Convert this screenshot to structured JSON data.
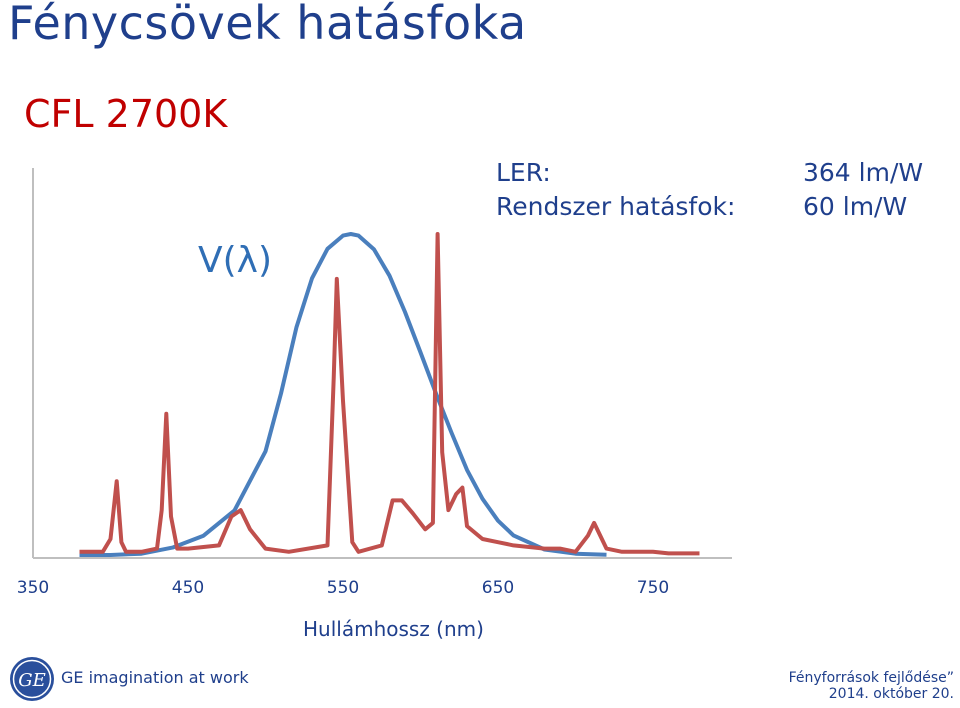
{
  "slide": {
    "title": "Fénycsövek hatásfoka",
    "subtitle": "CFL 2700K"
  },
  "info": {
    "ler_label": "LER:",
    "ler_value": "364 lm/W",
    "system_label": "Rendszer hatásfok:",
    "system_value": "60 lm/W"
  },
  "footer": {
    "brand_tagline": "GE imagination at work",
    "logo_text": "GE",
    "event": "Fényforrások fejlődése”",
    "date": "2014. október 20."
  },
  "colors": {
    "title": "#1f3f8c",
    "subtitle": "#c00000",
    "v_lambda": "#4a7fbd",
    "spectrum": "#c0504d",
    "axis": "#bfbfbf"
  },
  "chart_data": {
    "type": "line",
    "xlabel": "Hullámhossz (nm)",
    "ylabel": "",
    "xlim": [
      350,
      800
    ],
    "ylim": [
      0,
      1
    ],
    "xticks": [
      350,
      450,
      550,
      650,
      750
    ],
    "grid": false,
    "annotations": [
      {
        "text": "V(λ)"
      }
    ],
    "series": [
      {
        "label": "V(λ)",
        "color": "#4a7fbd",
        "x": [
          380,
          400,
          420,
          440,
          460,
          480,
          500,
          510,
          520,
          530,
          540,
          550,
          555,
          560,
          570,
          580,
          590,
          600,
          610,
          620,
          630,
          640,
          650,
          660,
          680,
          700,
          720
        ],
        "y": [
          0.0,
          0.0,
          0.004,
          0.023,
          0.06,
          0.139,
          0.323,
          0.503,
          0.71,
          0.862,
          0.954,
          0.995,
          1.0,
          0.995,
          0.952,
          0.87,
          0.757,
          0.631,
          0.503,
          0.381,
          0.265,
          0.175,
          0.107,
          0.061,
          0.017,
          0.004,
          0.001
        ]
      },
      {
        "label": "",
        "color": "#c0504d",
        "x": [
          380,
          395,
          400,
          404,
          407,
          410,
          420,
          430,
          433,
          436,
          439,
          443,
          450,
          470,
          478,
          484,
          490,
          500,
          515,
          540,
          544,
          546,
          550,
          556,
          560,
          575,
          582,
          588,
          595,
          603,
          608,
          611,
          614,
          618,
          623,
          627,
          630,
          640,
          650,
          660,
          680,
          690,
          700,
          708,
          712,
          720,
          730,
          740,
          750,
          760,
          770,
          780
        ],
        "y": [
          0.01,
          0.01,
          0.05,
          0.23,
          0.04,
          0.01,
          0.01,
          0.02,
          0.14,
          0.44,
          0.12,
          0.02,
          0.02,
          0.03,
          0.12,
          0.14,
          0.08,
          0.02,
          0.01,
          0.03,
          0.55,
          0.86,
          0.48,
          0.04,
          0.01,
          0.03,
          0.17,
          0.17,
          0.13,
          0.08,
          0.1,
          1.0,
          0.32,
          0.14,
          0.19,
          0.21,
          0.09,
          0.05,
          0.04,
          0.03,
          0.02,
          0.02,
          0.01,
          0.06,
          0.1,
          0.02,
          0.01,
          0.01,
          0.01,
          0.005,
          0.005,
          0.005
        ]
      }
    ]
  }
}
